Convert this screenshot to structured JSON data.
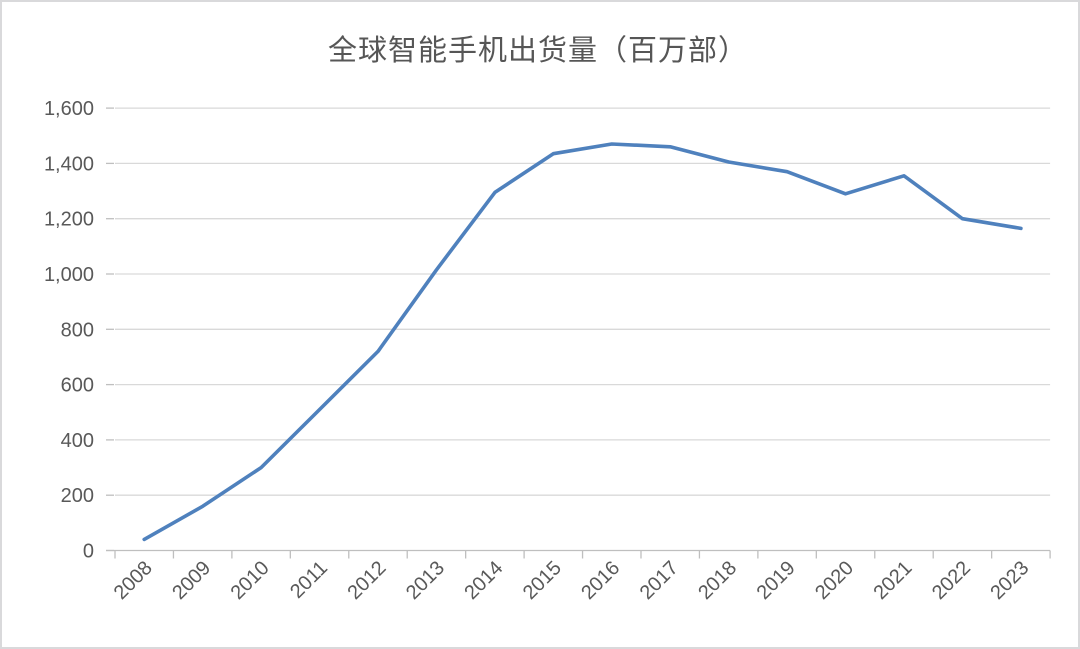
{
  "chart_data": {
    "type": "line",
    "title": "全球智能手机出货量（百万部）",
    "categories": [
      "2008",
      "2009",
      "2010",
      "2011",
      "2012",
      "2013",
      "2014",
      "2015",
      "2016",
      "2017",
      "2018",
      "2019",
      "2020",
      "2021",
      "2022",
      "2023"
    ],
    "series": [
      {
        "name": "全球智能手机出货量",
        "values": [
          40,
          160,
          300,
          510,
          720,
          1015,
          1295,
          1435,
          1470,
          1460,
          1405,
          1370,
          1290,
          1355,
          1200,
          1165
        ]
      }
    ],
    "xlabel": "",
    "ylabel": "",
    "ylim": [
      0,
      1600
    ],
    "ytick_step": 200,
    "ytick_labels": [
      "0",
      "200",
      "400",
      "600",
      "800",
      "1,000",
      "1,200",
      "1,400",
      "1,600"
    ],
    "grid": "horizontal",
    "legend": "none",
    "colors": {
      "line": "#4F81BD",
      "gridline": "#D9D9D9",
      "axis": "#BFBFBF",
      "tick_label": "#595959",
      "title": "#565656",
      "background": "#FFFFFF"
    }
  }
}
